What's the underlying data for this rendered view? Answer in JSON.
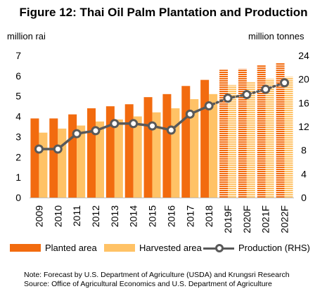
{
  "chart_data": {
    "type": "bar",
    "title": "Figure 12: Thai Oil Palm Plantation and Production",
    "ylabel_left": "million rai",
    "ylabel_right": "million tonnes",
    "categories": [
      "2009",
      "2010",
      "2011",
      "2012",
      "2013",
      "2014",
      "2015",
      "2016",
      "2017",
      "2018",
      "2019F",
      "2020F",
      "2021F",
      "2022F"
    ],
    "forecast_from_index": 10,
    "series": [
      {
        "name": "Planted area",
        "type": "bar",
        "axis": "left",
        "color": "#F26B0F",
        "values": [
          3.9,
          3.9,
          4.1,
          4.4,
          4.5,
          4.6,
          4.95,
          5.1,
          5.5,
          5.8,
          6.3,
          6.35,
          6.55,
          6.65
        ]
      },
      {
        "name": "Harvested area",
        "type": "bar",
        "axis": "left",
        "color": "#FFC266",
        "values": [
          3.2,
          3.4,
          3.55,
          3.75,
          3.85,
          4.0,
          4.2,
          4.4,
          4.85,
          5.1,
          5.55,
          5.7,
          5.85,
          5.95
        ]
      },
      {
        "name": "Production (RHS)",
        "type": "line",
        "axis": "right",
        "color": "#595959",
        "values": [
          8.2,
          8.2,
          10.8,
          11.3,
          12.5,
          12.5,
          12.1,
          11.4,
          14.1,
          15.5,
          16.8,
          17.4,
          18.3,
          19.4
        ]
      }
    ],
    "ylim_left": [
      0,
      7
    ],
    "yticks_left": [
      0,
      1,
      2,
      3,
      4,
      5,
      6,
      7
    ],
    "ylim_right": [
      0,
      24
    ],
    "yticks_right": [
      0,
      4,
      8,
      12,
      16,
      20,
      24
    ],
    "grid": false,
    "legend_position": "bottom"
  },
  "notes": {
    "line1": "Note: Forecast by U.S. Department of Agriculture (USDA) and Krungsri Research",
    "line2": "Source: Office of Agricultural Economics and U.S. Department of Agriculture"
  }
}
